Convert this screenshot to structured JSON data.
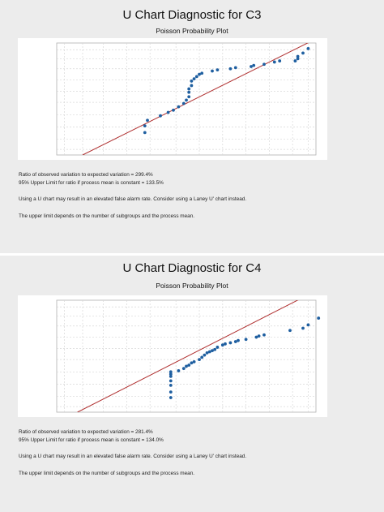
{
  "chart_data": [
    {
      "type": "scatter",
      "title": "U Chart Diagnostic for C3",
      "subtitle": "Poisson Probability Plot",
      "grid": true,
      "colors": {
        "points": "#1f5fa0",
        "fit_line": "#b03030",
        "panel": "#ececec",
        "grid": "#d8d8d8"
      },
      "xlim": [
        0,
        1
      ],
      "ylim": [
        0,
        1
      ],
      "fit_line": [
        [
          0.1,
          0.0
        ],
        [
          1.02,
          1.06
        ]
      ],
      "points": [
        [
          0.34,
          0.2
        ],
        [
          0.34,
          0.26
        ],
        [
          0.35,
          0.31
        ],
        [
          0.4,
          0.35
        ],
        [
          0.43,
          0.38
        ],
        [
          0.45,
          0.4
        ],
        [
          0.47,
          0.43
        ],
        [
          0.49,
          0.46
        ],
        [
          0.5,
          0.49
        ],
        [
          0.51,
          0.52
        ],
        [
          0.51,
          0.56
        ],
        [
          0.51,
          0.59
        ],
        [
          0.52,
          0.62
        ],
        [
          0.52,
          0.66
        ],
        [
          0.53,
          0.68
        ],
        [
          0.54,
          0.7
        ],
        [
          0.55,
          0.72
        ],
        [
          0.56,
          0.73
        ],
        [
          0.6,
          0.75
        ],
        [
          0.62,
          0.76
        ],
        [
          0.67,
          0.77
        ],
        [
          0.69,
          0.78
        ],
        [
          0.75,
          0.79
        ],
        [
          0.76,
          0.8
        ],
        [
          0.8,
          0.81
        ],
        [
          0.84,
          0.83
        ],
        [
          0.86,
          0.84
        ],
        [
          0.92,
          0.84
        ],
        [
          0.93,
          0.86
        ],
        [
          0.93,
          0.88
        ],
        [
          0.95,
          0.91
        ],
        [
          0.97,
          0.95
        ]
      ],
      "notes": [
        "Ratio of observed variation to expected variation = 299.4%",
        "95% Upper Limit for ratio if process mean is constant = 133.5%",
        "Using a U chart may result in an elevated false alarm rate. Consider using a Laney U' chart instead.",
        "The upper limit depends on the number of subgroups and the process mean."
      ]
    },
    {
      "type": "scatter",
      "title": "U Chart Diagnostic for C4",
      "subtitle": "Poisson Probability Plot",
      "grid": true,
      "colors": {
        "points": "#1f5fa0",
        "fit_line": "#b03030",
        "panel": "#ececec",
        "grid": "#d8d8d8"
      },
      "xlim": [
        0,
        1
      ],
      "ylim": [
        0,
        1
      ],
      "fit_line": [
        [
          0.08,
          0.0
        ],
        [
          0.98,
          1.06
        ]
      ],
      "points": [
        [
          0.44,
          0.13
        ],
        [
          0.44,
          0.18
        ],
        [
          0.44,
          0.24
        ],
        [
          0.44,
          0.28
        ],
        [
          0.44,
          0.32
        ],
        [
          0.44,
          0.34
        ],
        [
          0.44,
          0.36
        ],
        [
          0.47,
          0.37
        ],
        [
          0.49,
          0.39
        ],
        [
          0.5,
          0.41
        ],
        [
          0.51,
          0.42
        ],
        [
          0.52,
          0.44
        ],
        [
          0.53,
          0.45
        ],
        [
          0.55,
          0.47
        ],
        [
          0.56,
          0.49
        ],
        [
          0.57,
          0.51
        ],
        [
          0.58,
          0.53
        ],
        [
          0.59,
          0.54
        ],
        [
          0.6,
          0.55
        ],
        [
          0.61,
          0.56
        ],
        [
          0.62,
          0.58
        ],
        [
          0.64,
          0.6
        ],
        [
          0.65,
          0.61
        ],
        [
          0.67,
          0.62
        ],
        [
          0.69,
          0.63
        ],
        [
          0.7,
          0.64
        ],
        [
          0.73,
          0.65
        ],
        [
          0.77,
          0.67
        ],
        [
          0.78,
          0.68
        ],
        [
          0.8,
          0.69
        ],
        [
          0.9,
          0.73
        ],
        [
          0.95,
          0.75
        ],
        [
          0.97,
          0.78
        ],
        [
          1.01,
          0.84
        ]
      ],
      "notes": [
        "Ratio of observed variation to expected variation = 281.4%",
        "95% Upper Limit for ratio if process mean is constant = 134.0%",
        "Using a U chart may result in an elevated false alarm rate. Consider using a Laney U' chart instead.",
        "The upper limit depends on the number of subgroups and the process mean."
      ]
    }
  ]
}
